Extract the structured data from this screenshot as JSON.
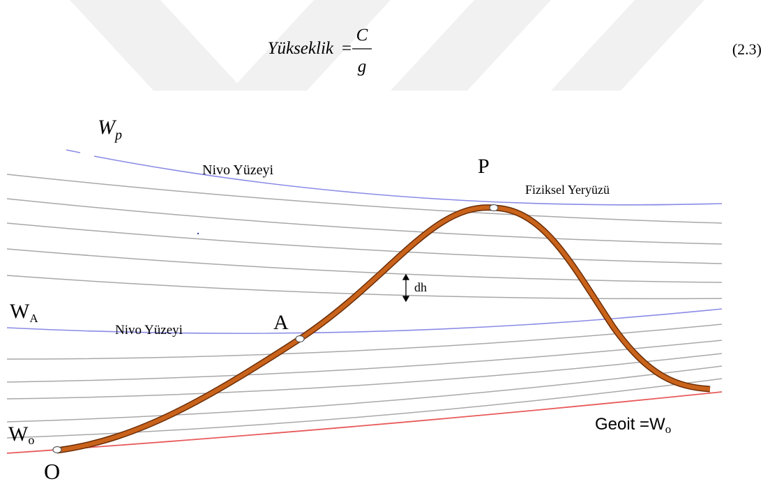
{
  "equation": {
    "lhs": "Yükseklik",
    "numerator": "C",
    "denominator": "g",
    "number": "(2.3)"
  },
  "figure": {
    "w_p": {
      "text": "W",
      "sub": "p"
    },
    "upper_level": "Nivo Yüzeyi",
    "point_p": "P",
    "surface": "Fiziksel Yeryüzü",
    "dh": "dh",
    "w_a": {
      "text": "W",
      "sub": "A"
    },
    "lower_level": "Nivo Yüzeyi",
    "point_a": "A",
    "w_o": {
      "text": "W",
      "sub": "o"
    },
    "geoid": {
      "text": "Geoit =W",
      "sub": "o"
    },
    "point_o": "O"
  }
}
